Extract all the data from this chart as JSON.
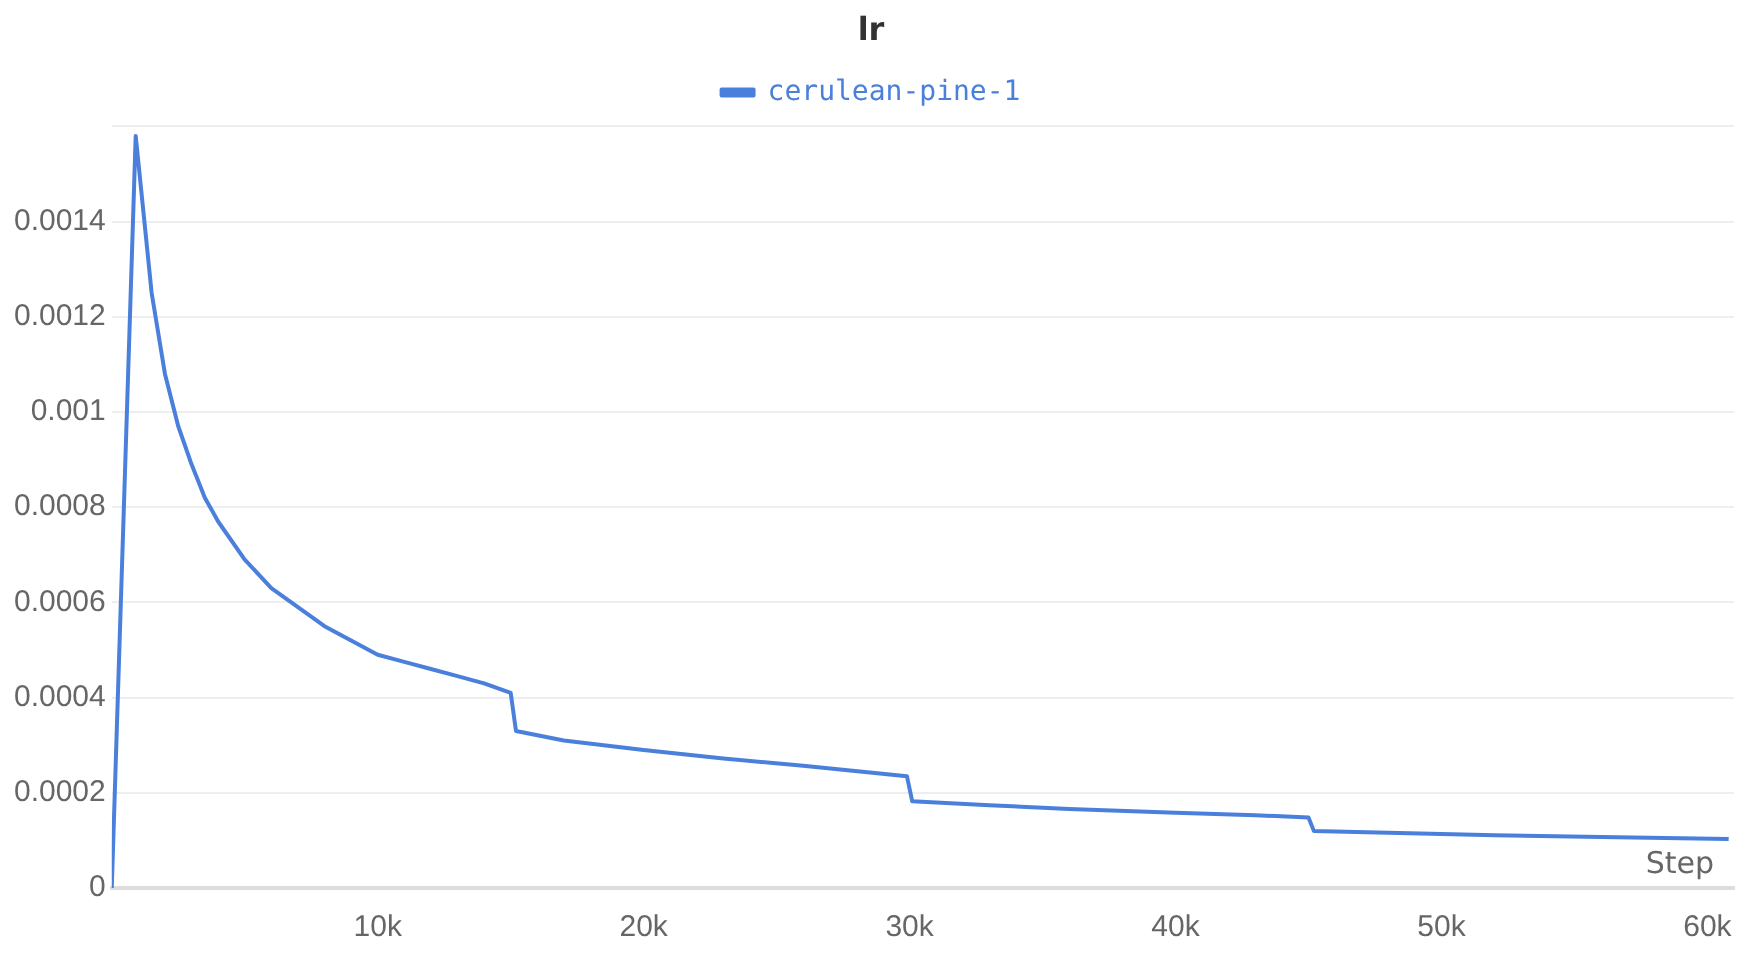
{
  "chart_data": {
    "type": "line",
    "title": "lr",
    "xlabel": "Step",
    "series": [
      {
        "name": "cerulean-pine-1",
        "color": "#4a7fdc",
        "x": [
          0,
          900,
          1500,
          2000,
          2500,
          3000,
          3500,
          4000,
          5000,
          6000,
          7000,
          8000,
          9000,
          10000,
          11000,
          12000,
          13000,
          14000,
          15000,
          15200,
          17000,
          20000,
          23000,
          26000,
          29900,
          30100,
          33000,
          36000,
          40000,
          43000,
          45000,
          45200,
          48000,
          52000,
          56000,
          60800
        ],
        "values": [
          0,
          0.00158,
          0.00125,
          0.00108,
          0.00097,
          0.00089,
          0.00082,
          0.00077,
          0.00069,
          0.00063,
          0.00059,
          0.00055,
          0.00052,
          0.00049,
          0.000475,
          0.00046,
          0.000445,
          0.00043,
          0.00041,
          0.00033,
          0.00031,
          0.00029,
          0.000272,
          0.000257,
          0.000235,
          0.000182,
          0.000174,
          0.000166,
          0.000158,
          0.000153,
          0.000148,
          0.00012,
          0.000116,
          0.000111,
          0.000107,
          0.000103
        ]
      }
    ],
    "xlim": [
      0,
      61000
    ],
    "xticks": [
      {
        "value": 10000,
        "label": "10k"
      },
      {
        "value": 20000,
        "label": "20k"
      },
      {
        "value": 30000,
        "label": "30k"
      },
      {
        "value": 40000,
        "label": "40k"
      },
      {
        "value": 50000,
        "label": "50k"
      },
      {
        "value": 60000,
        "label": "60k"
      }
    ],
    "ylim": [
      0,
      0.0016
    ],
    "yticks": [
      0,
      0.0002,
      0.0004,
      0.0006,
      0.0008,
      0.001,
      0.0012,
      0.0014,
      {
        "value": 0.0016,
        "label": null
      }
    ],
    "grid": "y",
    "legend": "top",
    "marker": "none",
    "line_style": "solid"
  }
}
